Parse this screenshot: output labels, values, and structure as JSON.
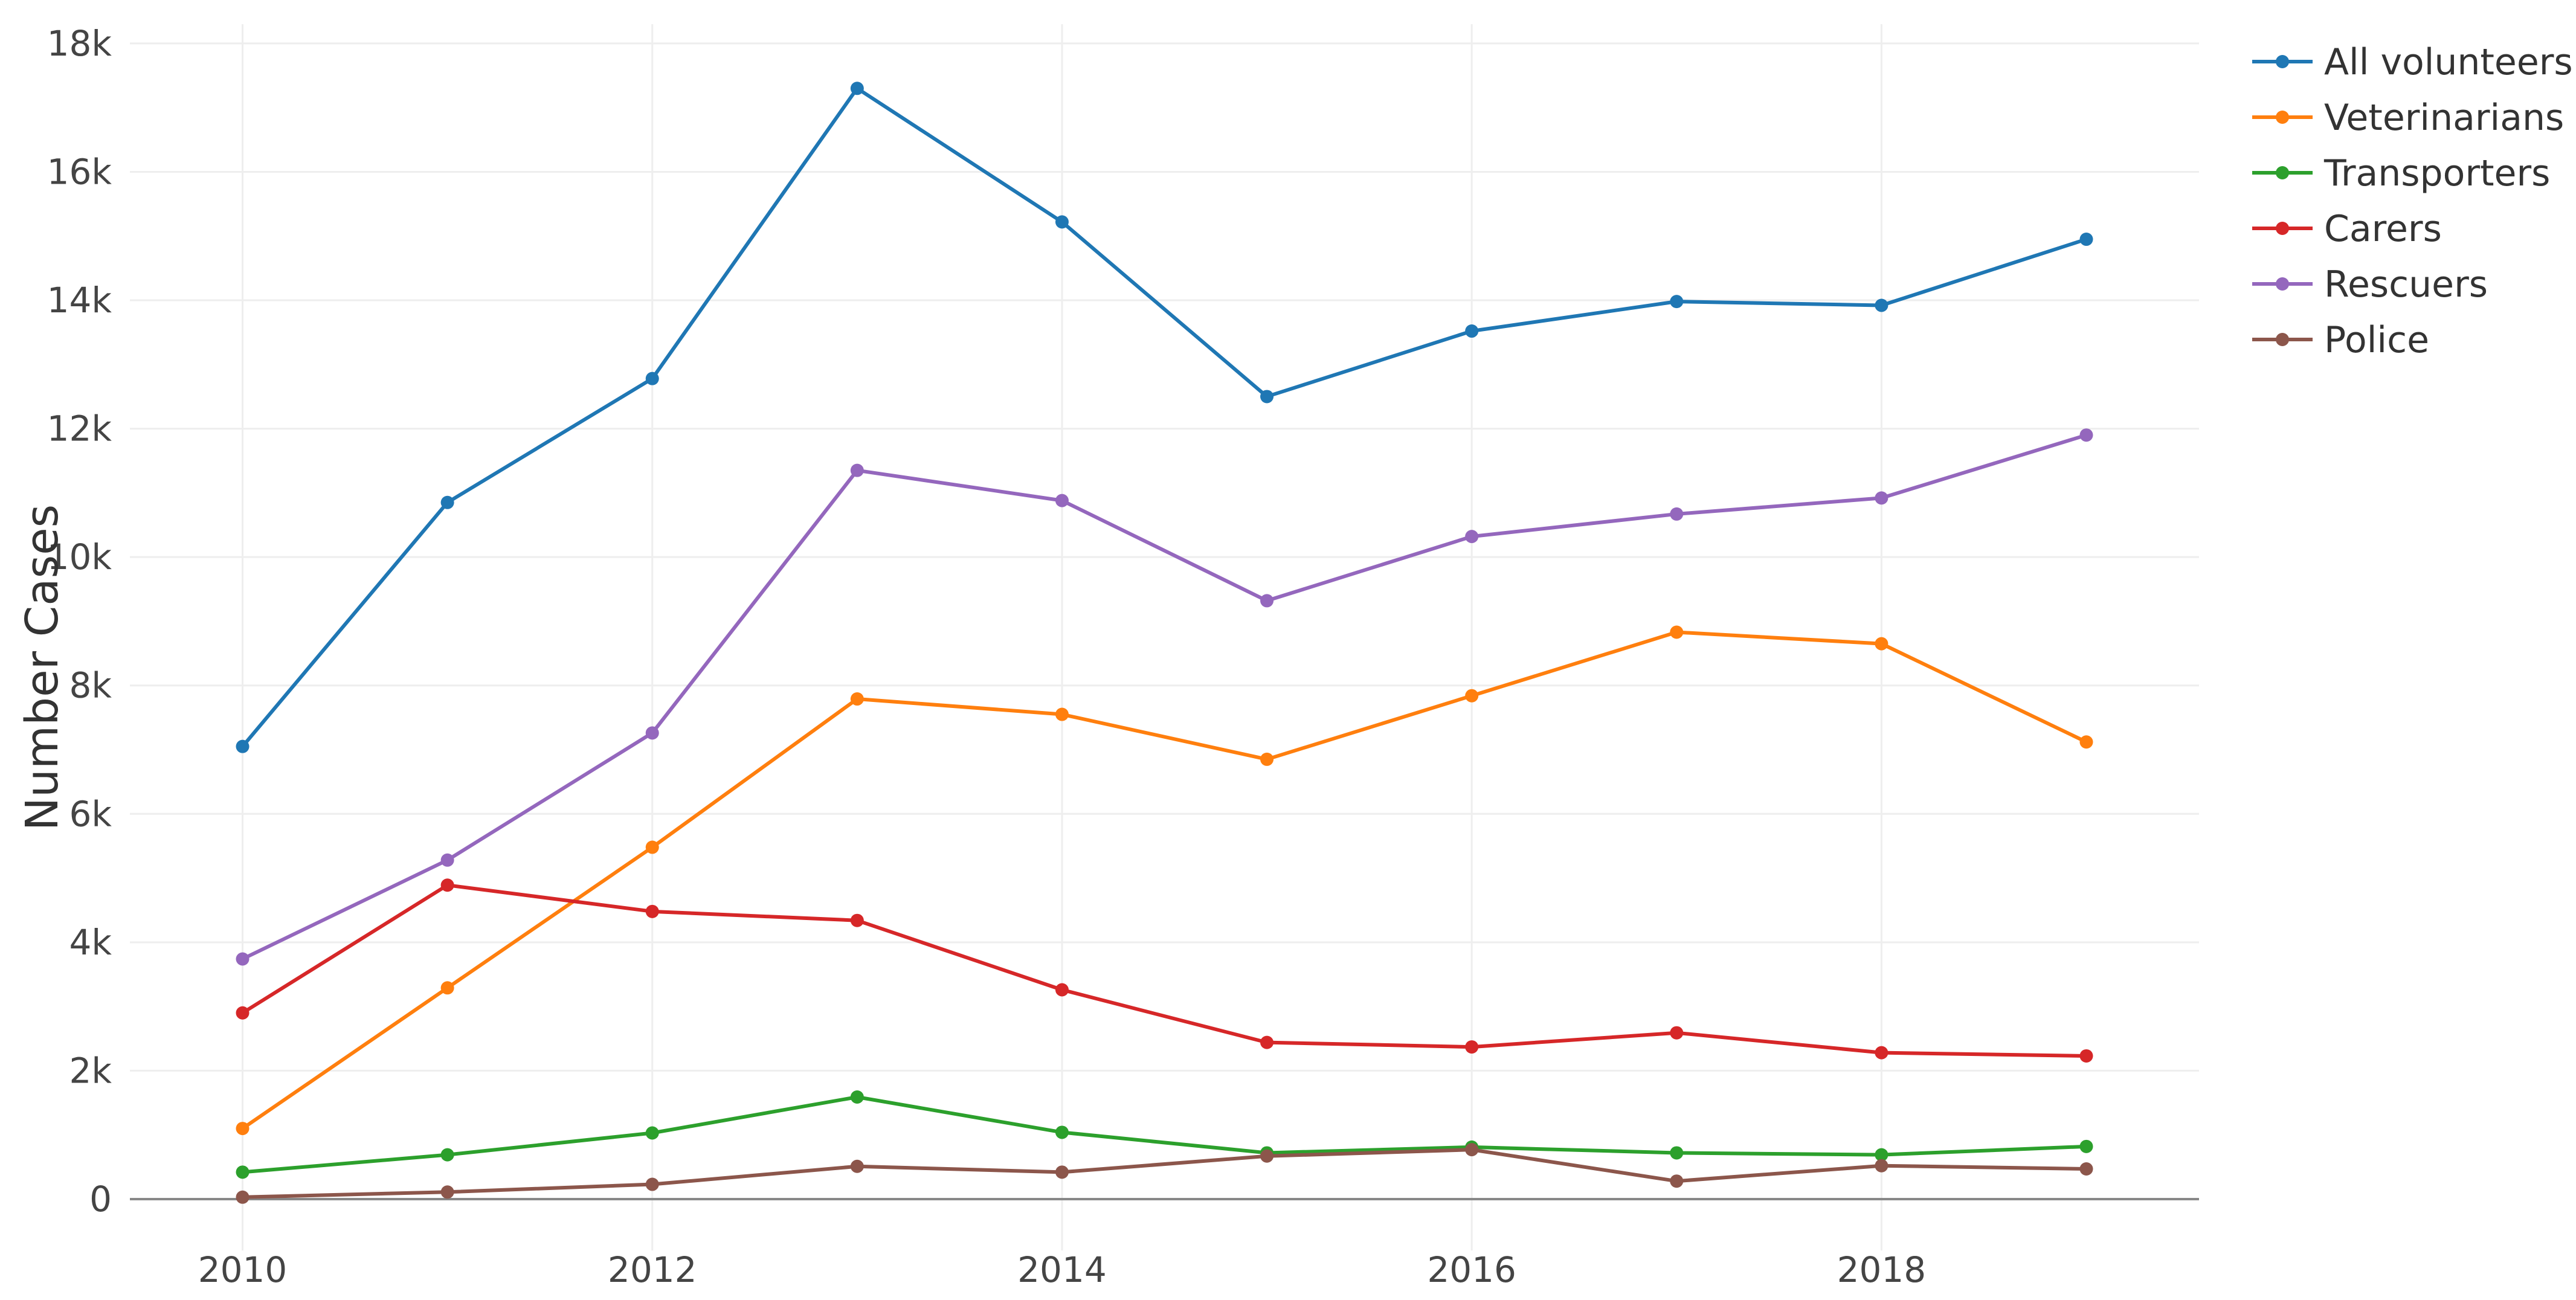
{
  "chart_data": {
    "type": "line",
    "title": "",
    "xlabel": "",
    "ylabel": "Number Cases",
    "x": [
      2010,
      2011,
      2012,
      2013,
      2014,
      2015,
      2016,
      2017,
      2018,
      2019
    ],
    "xticks": [
      2010,
      2012,
      2014,
      2016,
      2018
    ],
    "xtick_labels": [
      "2010",
      "2012",
      "2014",
      "2016",
      "2018"
    ],
    "xlim": [
      2009.45,
      2019.55
    ],
    "ylim": [
      -800,
      18300
    ],
    "yticks": [
      0,
      2000,
      4000,
      6000,
      8000,
      10000,
      12000,
      14000,
      16000,
      18000
    ],
    "ytick_labels": [
      "0",
      "2k",
      "4k",
      "6k",
      "8k",
      "10k",
      "12k",
      "14k",
      "16k",
      "18k"
    ],
    "grid": true,
    "legend_position": "top-right",
    "series": [
      {
        "name": "All volunteers",
        "color": "#1f77b4",
        "values": [
          7050,
          10850,
          12780,
          17300,
          15220,
          12500,
          13520,
          13980,
          13920,
          14950
        ]
      },
      {
        "name": "Veterinarians",
        "color": "#ff7f0e",
        "values": [
          1100,
          3290,
          5480,
          7790,
          7550,
          6850,
          7840,
          8830,
          8650,
          7120
        ]
      },
      {
        "name": "Transporters",
        "color": "#2ca02c",
        "values": [
          420,
          690,
          1030,
          1590,
          1040,
          720,
          810,
          720,
          690,
          820
        ]
      },
      {
        "name": "Carers",
        "color": "#d62728",
        "values": [
          2900,
          4890,
          4480,
          4340,
          3260,
          2440,
          2370,
          2590,
          2280,
          2230
        ]
      },
      {
        "name": "Rescuers",
        "color": "#9467bd",
        "values": [
          3740,
          5280,
          7260,
          11350,
          10880,
          9320,
          10320,
          10670,
          10920,
          11900
        ]
      },
      {
        "name": "Police",
        "color": "#8c564b",
        "values": [
          30,
          110,
          230,
          510,
          420,
          670,
          770,
          280,
          520,
          470
        ]
      }
    ]
  }
}
